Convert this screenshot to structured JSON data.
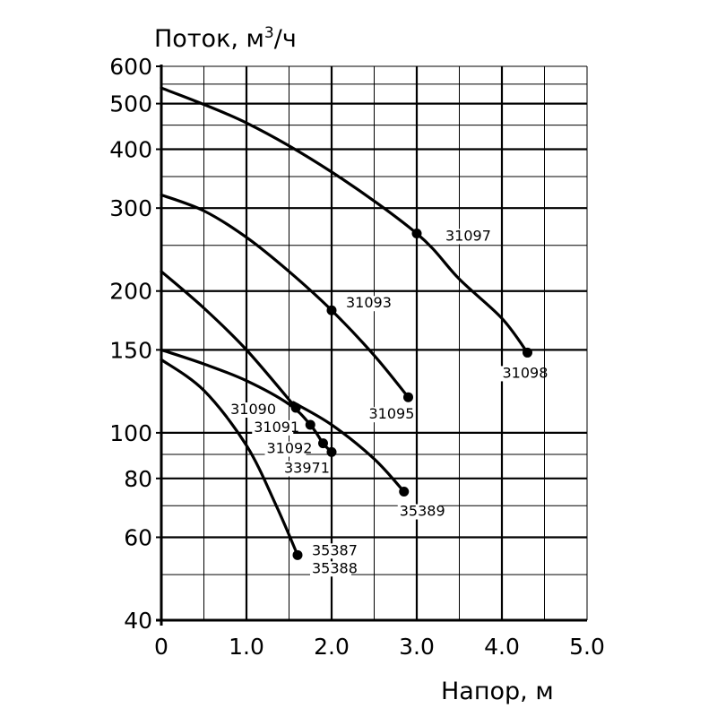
{
  "chart_data": {
    "type": "line",
    "ylabel_text": "Поток, м",
    "ylabel_sup": "3",
    "ylabel_unit": "/ч",
    "xlabel": "Напор, м",
    "xlim": [
      0,
      5.0
    ],
    "ylim": [
      40,
      600
    ],
    "yscale": "log",
    "x_ticks": [
      {
        "value": 0,
        "label": "0"
      },
      {
        "value": 1.0,
        "label": "1.0"
      },
      {
        "value": 2.0,
        "label": "2.0"
      },
      {
        "value": 3.0,
        "label": "3.0"
      },
      {
        "value": 4.0,
        "label": "4.0"
      },
      {
        "value": 5.0,
        "label": "5.0"
      }
    ],
    "y_ticks": [
      {
        "value": 40,
        "label": "40"
      },
      {
        "value": 60,
        "label": "60"
      },
      {
        "value": 80,
        "label": "80"
      },
      {
        "value": 100,
        "label": "100"
      },
      {
        "value": 150,
        "label": "150"
      },
      {
        "value": 200,
        "label": "200"
      },
      {
        "value": 300,
        "label": "300"
      },
      {
        "value": 400,
        "label": "400"
      },
      {
        "value": 500,
        "label": "500"
      },
      {
        "value": 600,
        "label": "600"
      }
    ],
    "x_grid": [
      0.5,
      1.0,
      1.5,
      2.0,
      2.5,
      3.0,
      3.5,
      4.0,
      4.5,
      5.0
    ],
    "x_grid_major": [
      1.0,
      2.0,
      3.0,
      4.0
    ],
    "y_grid": [
      50,
      60,
      70,
      80,
      90,
      100,
      150,
      200,
      250,
      300,
      350,
      400,
      450,
      500,
      550,
      600
    ],
    "y_grid_major": [
      60,
      80,
      100,
      150,
      200,
      300,
      400,
      500
    ],
    "series": [
      {
        "name": "31097-31098",
        "points": [
          [
            0,
            540
          ],
          [
            1.0,
            455
          ],
          [
            2.0,
            358
          ],
          [
            3.0,
            265
          ],
          [
            3.5,
            212
          ],
          [
            4.0,
            175
          ],
          [
            4.3,
            148
          ]
        ],
        "markers": [
          {
            "x": 3.0,
            "y": 265,
            "label": "31097"
          },
          {
            "x": 4.3,
            "y": 148,
            "label": "31098"
          }
        ]
      },
      {
        "name": "31093-31095",
        "points": [
          [
            0,
            320
          ],
          [
            0.5,
            296
          ],
          [
            1.0,
            260
          ],
          [
            1.5,
            220
          ],
          [
            2.0,
            182
          ],
          [
            2.5,
            146
          ],
          [
            2.9,
            119
          ]
        ],
        "markers": [
          {
            "x": 2.0,
            "y": 182,
            "label": "31093"
          },
          {
            "x": 2.9,
            "y": 119,
            "label": "31095"
          }
        ]
      },
      {
        "name": "31090",
        "points": [
          [
            0,
            220
          ],
          [
            0.5,
            184
          ],
          [
            1.0,
            150
          ],
          [
            1.58,
            113
          ]
        ],
        "markers": [
          {
            "x": 1.58,
            "y": 113,
            "label": "31090"
          }
        ]
      },
      {
        "name": "31091-33971",
        "points": [
          [
            0,
            150
          ],
          [
            0.5,
            140
          ],
          [
            1.0,
            129
          ],
          [
            1.5,
            115
          ],
          [
            1.75,
            104
          ],
          [
            1.9,
            95
          ],
          [
            2.0,
            91
          ]
        ],
        "markers": [
          {
            "x": 1.75,
            "y": 104,
            "label": "31091"
          },
          {
            "x": 1.9,
            "y": 95,
            "label": "31092"
          },
          {
            "x": 2.0,
            "y": 91,
            "label": "33971"
          }
        ]
      },
      {
        "name": "35389",
        "points": [
          [
            1.55,
            116
          ],
          [
            2.0,
            104
          ],
          [
            2.5,
            88
          ],
          [
            2.85,
            75
          ]
        ],
        "markers": [
          {
            "x": 2.85,
            "y": 75,
            "label": "35389"
          }
        ]
      },
      {
        "name": "35387-35388",
        "points": [
          [
            0,
            143
          ],
          [
            0.5,
            123
          ],
          [
            1.0,
            94
          ],
          [
            1.35,
            70
          ],
          [
            1.6,
            55
          ]
        ],
        "markers": [
          {
            "x": 1.6,
            "y": 55,
            "label": "35387"
          }
        ]
      }
    ],
    "extra_labels": [
      {
        "x": 1.6,
        "y": 55,
        "label": "35388"
      }
    ]
  }
}
